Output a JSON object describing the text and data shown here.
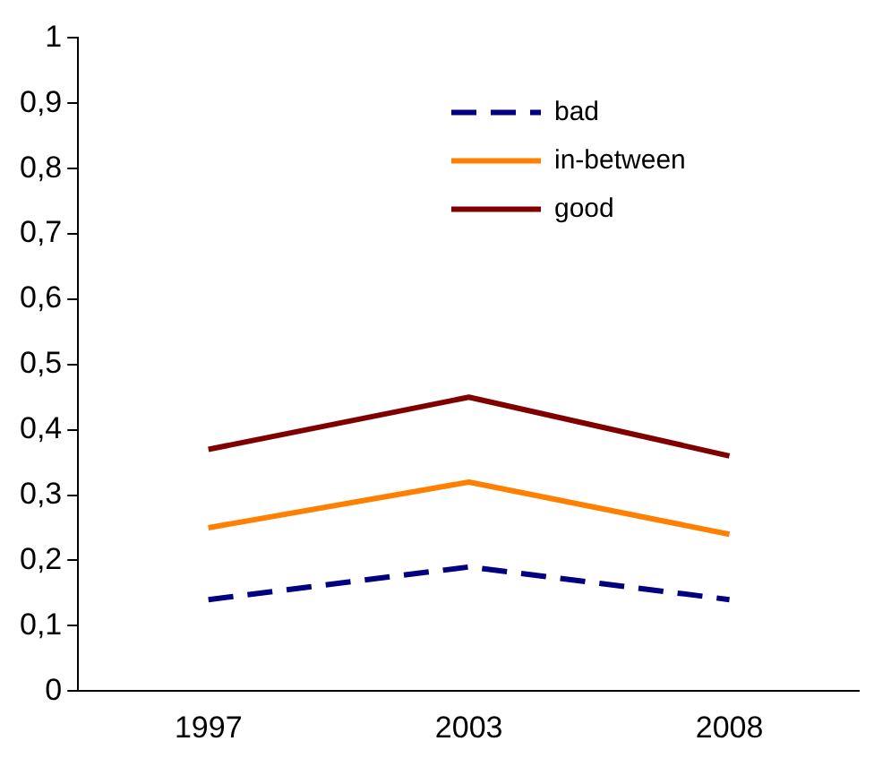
{
  "chart_data": {
    "type": "line",
    "categories": [
      "1997",
      "2003",
      "2008"
    ],
    "series": [
      {
        "name": "bad",
        "color": "#000080",
        "line_style": "dashed",
        "values": [
          0.14,
          0.19,
          0.14
        ]
      },
      {
        "name": "in-between",
        "color": "#ff8000",
        "line_style": "solid",
        "values": [
          0.25,
          0.32,
          0.24
        ]
      },
      {
        "name": "good",
        "color": "#800000",
        "line_style": "solid",
        "values": [
          0.37,
          0.45,
          0.36
        ]
      }
    ],
    "ylim": [
      0,
      1
    ],
    "yticks": [
      0,
      {
        "value": 0.1,
        "label": "0,1"
      },
      {
        "value": 0.2,
        "label": "0,2"
      },
      {
        "value": 0.3,
        "label": "0,3"
      },
      {
        "value": 0.4,
        "label": "0,4"
      },
      {
        "value": 0.5,
        "label": "0,5"
      },
      {
        "value": 0.6,
        "label": "0,6"
      },
      {
        "value": 0.7,
        "label": "0,7"
      },
      {
        "value": 0.8,
        "label": "0,8"
      },
      {
        "value": 0.9,
        "label": "0,9"
      },
      1
    ],
    "grid": false,
    "legend": "top right",
    "marker": "none"
  }
}
